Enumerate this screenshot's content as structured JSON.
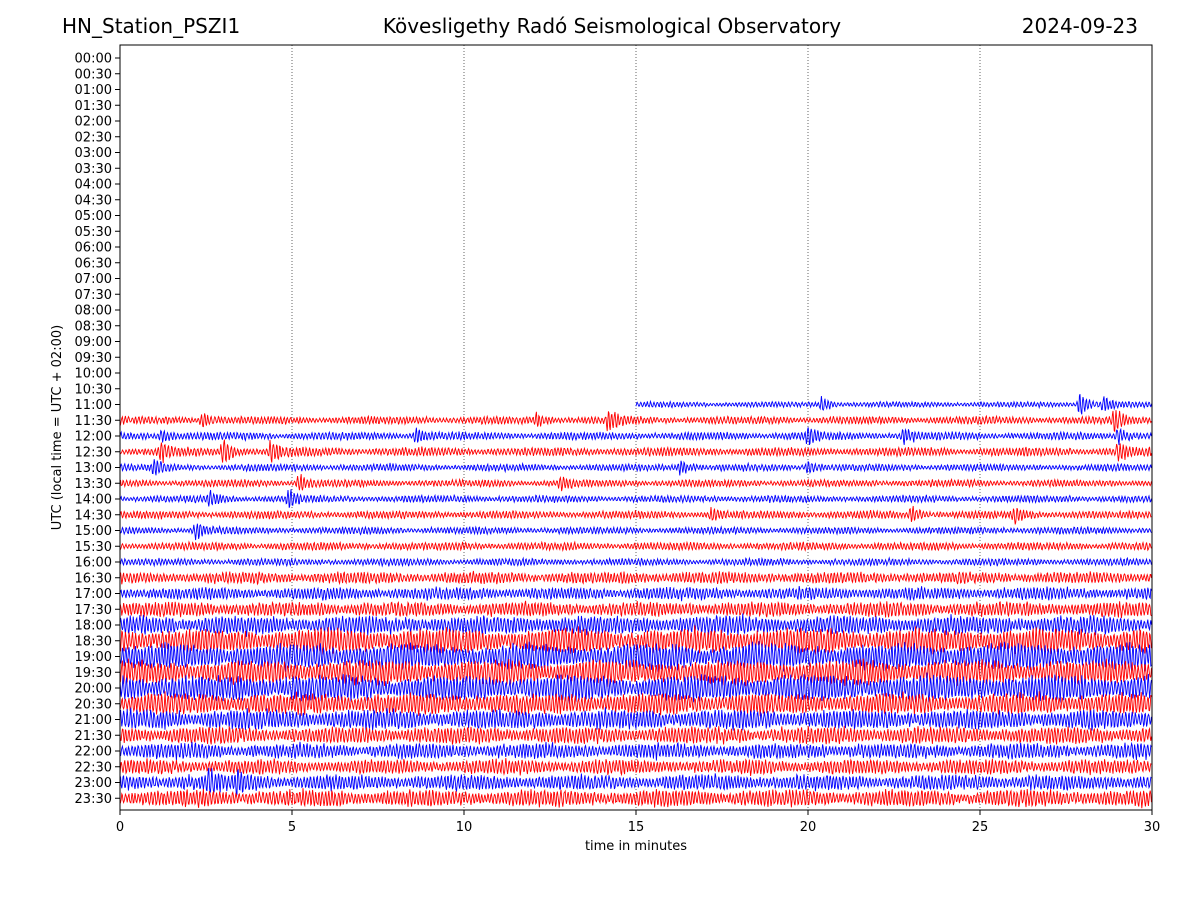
{
  "header": {
    "station": "HN_Station_PSZI1",
    "title": "Kövesligethy Radó Seismological Observatory",
    "date": "2024-09-23"
  },
  "chart_data": {
    "type": "line",
    "xlabel": "time in minutes",
    "ylabel": "UTC (local time = UTC + 02:00)",
    "xlim": [
      0,
      30
    ],
    "x_ticks": [
      0,
      5,
      10,
      15,
      20,
      25,
      30
    ],
    "y_tick_labels": [
      "00:00",
      "00:30",
      "01:00",
      "01:30",
      "02:00",
      "02:30",
      "03:00",
      "03:30",
      "04:00",
      "04:30",
      "05:00",
      "05:30",
      "06:00",
      "06:30",
      "07:00",
      "07:30",
      "08:00",
      "08:30",
      "09:00",
      "09:30",
      "10:00",
      "10:30",
      "11:00",
      "11:30",
      "12:00",
      "12:30",
      "13:00",
      "13:30",
      "14:00",
      "14:30",
      "15:00",
      "15:30",
      "16:00",
      "16:30",
      "17:00",
      "17:30",
      "18:00",
      "18:30",
      "19:00",
      "19:30",
      "20:00",
      "20:30",
      "21:00",
      "21:30",
      "22:00",
      "22:30",
      "23:00",
      "23:30"
    ],
    "vertical_gridlines_at": [
      5,
      10,
      15,
      20,
      25
    ],
    "trace_colors": [
      "#0000ff",
      "#ff0000"
    ],
    "traces": [
      {
        "row": "11:00",
        "color": "blue",
        "start_min": 15,
        "amplitude": 0.35,
        "events": [
          [
            20.4,
            1.0
          ],
          [
            27.9,
            1.6
          ],
          [
            28.6,
            1.0
          ]
        ]
      },
      {
        "row": "11:30",
        "color": "red",
        "start_min": 0,
        "amplitude": 0.5,
        "events": [
          [
            2.4,
            0.9
          ],
          [
            12.1,
            0.9
          ],
          [
            14.2,
            1.4
          ],
          [
            28.9,
            1.3
          ]
        ]
      },
      {
        "row": "12:00",
        "color": "blue",
        "start_min": 0,
        "amplitude": 0.5,
        "events": [
          [
            1.2,
            0.9
          ],
          [
            8.6,
            0.9
          ],
          [
            20.0,
            1.0
          ],
          [
            22.8,
            0.9
          ],
          [
            29.0,
            1.2
          ]
        ]
      },
      {
        "row": "12:30",
        "color": "red",
        "start_min": 0,
        "amplitude": 0.55,
        "events": [
          [
            1.2,
            1.2
          ],
          [
            3.0,
            1.5
          ],
          [
            4.4,
            1.4
          ],
          [
            29.0,
            1.0
          ]
        ]
      },
      {
        "row": "13:00",
        "color": "blue",
        "start_min": 0,
        "amplitude": 0.45,
        "events": [
          [
            1.0,
            0.8
          ],
          [
            16.3,
            0.9
          ],
          [
            20.0,
            0.8
          ]
        ]
      },
      {
        "row": "13:30",
        "color": "red",
        "start_min": 0,
        "amplitude": 0.45,
        "events": [
          [
            5.2,
            1.2
          ],
          [
            12.8,
            0.7
          ]
        ]
      },
      {
        "row": "14:00",
        "color": "blue",
        "start_min": 0,
        "amplitude": 0.45,
        "events": [
          [
            2.6,
            0.9
          ],
          [
            4.9,
            1.1
          ]
        ]
      },
      {
        "row": "14:30",
        "color": "red",
        "start_min": 0,
        "amplitude": 0.5,
        "events": [
          [
            17.2,
            0.7
          ],
          [
            23.0,
            0.9
          ],
          [
            26.0,
            0.7
          ]
        ]
      },
      {
        "row": "15:00",
        "color": "blue",
        "start_min": 0,
        "amplitude": 0.45,
        "events": [
          [
            2.2,
            1.0
          ]
        ]
      },
      {
        "row": "15:30",
        "color": "red",
        "start_min": 0,
        "amplitude": 0.5,
        "events": []
      },
      {
        "row": "16:00",
        "color": "blue",
        "start_min": 0,
        "amplitude": 0.45,
        "events": []
      },
      {
        "row": "16:30",
        "color": "red",
        "start_min": 0,
        "amplitude": 0.75,
        "events": []
      },
      {
        "row": "17:00",
        "color": "blue",
        "start_min": 0,
        "amplitude": 0.8,
        "events": []
      },
      {
        "row": "17:30",
        "color": "red",
        "start_min": 0,
        "amplitude": 0.95,
        "events": []
      },
      {
        "row": "18:00",
        "color": "blue",
        "start_min": 0,
        "amplitude": 1.2,
        "events": []
      },
      {
        "row": "18:30",
        "color": "red",
        "start_min": 0,
        "amplitude": 1.6,
        "events": []
      },
      {
        "row": "19:00",
        "color": "blue",
        "start_min": 0,
        "amplitude": 1.7,
        "events": []
      },
      {
        "row": "19:30",
        "color": "red",
        "start_min": 0,
        "amplitude": 1.6,
        "events": []
      },
      {
        "row": "20:00",
        "color": "blue",
        "start_min": 0,
        "amplitude": 1.7,
        "events": []
      },
      {
        "row": "20:30",
        "color": "red",
        "start_min": 0,
        "amplitude": 1.4,
        "events": []
      },
      {
        "row": "21:00",
        "color": "blue",
        "start_min": 0,
        "amplitude": 1.3,
        "events": []
      },
      {
        "row": "21:30",
        "color": "red",
        "start_min": 0,
        "amplitude": 1.1,
        "events": []
      },
      {
        "row": "22:00",
        "color": "blue",
        "start_min": 0,
        "amplitude": 1.0,
        "events": []
      },
      {
        "row": "22:30",
        "color": "red",
        "start_min": 0,
        "amplitude": 0.95,
        "events": []
      },
      {
        "row": "23:00",
        "color": "blue",
        "start_min": 0,
        "amplitude": 1.0,
        "events": [
          [
            2.6,
            1.4
          ],
          [
            3.4,
            1.2
          ]
        ]
      },
      {
        "row": "23:30",
        "color": "red",
        "start_min": 0,
        "amplitude": 1.1,
        "events": []
      }
    ]
  }
}
